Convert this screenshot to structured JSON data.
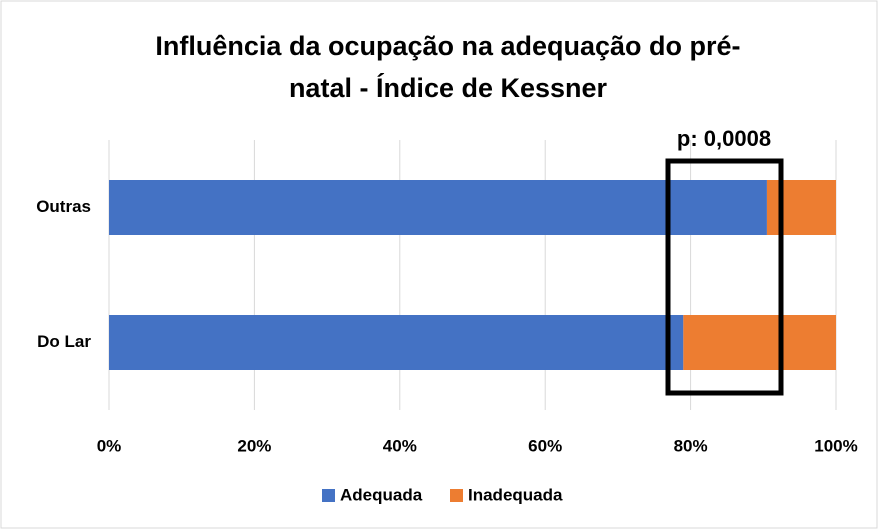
{
  "chart_data": {
    "type": "stacked-bar-horizontal",
    "title": [
      "Influência da ocupação na adequação do pré-",
      "natal - Índice de Kessner"
    ],
    "annotation": "p: 0,0008",
    "categories": [
      "Outras",
      "Do Lar"
    ],
    "series": [
      {
        "name": "Adequada",
        "color": "#4472c4",
        "values": [
          90.5,
          79
        ]
      },
      {
        "name": "Inadequada",
        "color": "#ed7d31",
        "values": [
          9.5,
          21
        ]
      }
    ],
    "xlim": [
      0,
      100
    ],
    "xticks": [
      {
        "value": 0,
        "label": "0%"
      },
      {
        "value": 20,
        "label": "20%"
      },
      {
        "value": 40,
        "label": "40%"
      },
      {
        "value": 60,
        "label": "60%"
      },
      {
        "value": 80,
        "label": "80%"
      },
      {
        "value": 100,
        "label": "100%"
      }
    ],
    "grid": true,
    "legend": "bottom"
  }
}
